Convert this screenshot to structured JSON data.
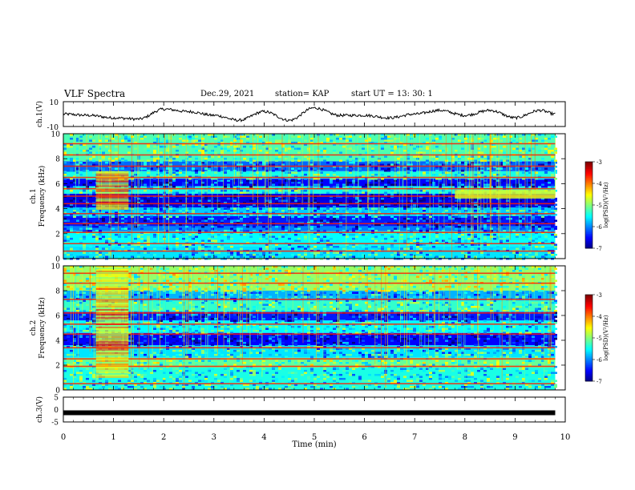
{
  "header": {
    "title": "VLF Spectra",
    "date": "Dec.29, 2021",
    "station": "station= KAP",
    "start": "start UT = 13: 30: 1"
  },
  "chart_data": [
    {
      "type": "line",
      "panel": "ch1-waveform",
      "ylabel": "ch.1(V)",
      "ylim": [
        -10,
        10
      ],
      "yticks": [
        "10",
        "-10"
      ],
      "x_min": [
        0,
        0.5,
        1,
        1.5,
        2,
        2.5,
        3,
        3.5,
        4,
        4.5,
        5,
        5.5,
        6,
        6.5,
        7,
        7.5,
        8,
        8.5,
        9,
        9.5,
        9.8
      ],
      "y_volts": [
        0,
        -1,
        -3,
        -4,
        4,
        2,
        -1,
        -5,
        2,
        -5,
        5,
        -1,
        -1,
        -3,
        0,
        3,
        -1,
        3,
        -3,
        3,
        0
      ]
    },
    {
      "type": "heatmap",
      "panel": "ch1-spectrogram",
      "ylabel": "ch.1\nFrequency (kHz)",
      "xlim": [
        0,
        10
      ],
      "ylim": [
        0,
        10
      ],
      "yticks": [
        "0",
        "2",
        "4",
        "6",
        "8",
        "10"
      ],
      "colorbar": {
        "label": "log(PSD)(V²/Hz)",
        "range": [
          -7,
          -3
        ],
        "ticks": [
          "-3",
          "-4",
          "-5",
          "-6",
          "-7"
        ]
      },
      "data_extent_min": 9.8,
      "bands_khz": [
        {
          "lo": 0,
          "hi": 1.0,
          "level": -5.6
        },
        {
          "lo": 1.0,
          "hi": 2.2,
          "level": -5.5
        },
        {
          "lo": 2.2,
          "hi": 2.6,
          "level": -6.0
        },
        {
          "lo": 2.6,
          "hi": 3.4,
          "level": -6.4
        },
        {
          "lo": 3.4,
          "hi": 4.1,
          "level": -5.7
        },
        {
          "lo": 4.1,
          "hi": 5.2,
          "level": -6.6
        },
        {
          "lo": 5.2,
          "hi": 5.8,
          "level": -5.4
        },
        {
          "lo": 5.8,
          "hi": 6.4,
          "level": -6.5
        },
        {
          "lo": 6.4,
          "hi": 7.0,
          "level": -5.4
        },
        {
          "lo": 7.0,
          "hi": 7.8,
          "level": -6.1
        },
        {
          "lo": 7.8,
          "hi": 10,
          "level": -5.2
        }
      ],
      "lines_khz": [
        0.6,
        1.2,
        2.1,
        2.8,
        3.6,
        4.4,
        5.0,
        5.6,
        6.5,
        7.4,
        8.3,
        9.2
      ],
      "burst_min": [
        0.65,
        1.3
      ],
      "burst_khz": [
        4.0,
        7.0
      ],
      "late_band_min": [
        7.8,
        9.8
      ],
      "late_band_khz": [
        4.8,
        5.5
      ]
    },
    {
      "type": "heatmap",
      "panel": "ch2-spectrogram",
      "ylabel": "ch.2\nFrequency (kHz)",
      "xlim": [
        0,
        10
      ],
      "ylim": [
        0,
        10
      ],
      "yticks": [
        "0",
        "2",
        "4",
        "6",
        "8",
        "10"
      ],
      "colorbar": {
        "label": "log(PSD)(V²/Hz)",
        "range": [
          -7,
          -3
        ],
        "ticks": [
          "-3",
          "-4",
          "-5",
          "-6",
          "-7"
        ]
      },
      "data_extent_min": 9.8,
      "bands_khz": [
        {
          "lo": 0,
          "hi": 1.8,
          "level": -5.4
        },
        {
          "lo": 1.8,
          "hi": 2.6,
          "level": -5.1
        },
        {
          "lo": 2.6,
          "hi": 3.6,
          "level": -5.6
        },
        {
          "lo": 3.6,
          "hi": 4.6,
          "level": -6.5
        },
        {
          "lo": 4.6,
          "hi": 5.6,
          "level": -5.5
        },
        {
          "lo": 5.6,
          "hi": 6.3,
          "level": -6.4
        },
        {
          "lo": 6.3,
          "hi": 7.2,
          "level": -5.3
        },
        {
          "lo": 7.2,
          "hi": 8.0,
          "level": -5.8
        },
        {
          "lo": 8.0,
          "hi": 10,
          "level": -4.9
        }
      ],
      "lines_khz": [
        0.5,
        1.9,
        2.5,
        3.4,
        4.5,
        5.3,
        6.2,
        7.3,
        8.6,
        9.4
      ],
      "burst_min": [
        0.65,
        1.3
      ],
      "burst_khz": [
        1.0,
        10.0
      ]
    },
    {
      "type": "line",
      "panel": "ch3-waveform",
      "ylabel": "ch.3(V)",
      "ylim": [
        -5,
        5
      ],
      "yticks": [
        "5",
        "0",
        "-5"
      ],
      "x_min": [
        0,
        9.8
      ],
      "y_volts": [
        -1.3,
        -1.3
      ]
    }
  ],
  "xaxis": {
    "label": "Time (min)",
    "ticks": [
      "0",
      "1",
      "2",
      "3",
      "4",
      "5",
      "6",
      "7",
      "8",
      "9",
      "10"
    ]
  }
}
